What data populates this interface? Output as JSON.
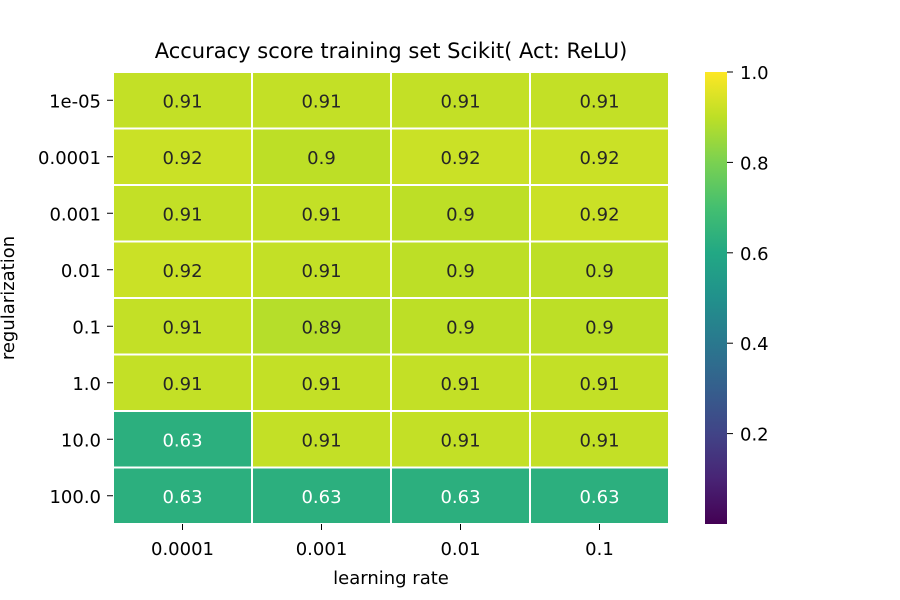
{
  "chart_data": {
    "type": "heatmap",
    "title": "Accuracy score training set Scikit( Act: ReLU)",
    "xlabel": "learning rate",
    "ylabel": "regularization",
    "x_categories": [
      "0.0001",
      "0.001",
      "0.01",
      "0.1"
    ],
    "y_categories": [
      "1e-05",
      "0.0001",
      "0.001",
      "0.01",
      "0.1",
      "1.0",
      "10.0",
      "100.0"
    ],
    "values": [
      [
        0.91,
        0.91,
        0.91,
        0.91
      ],
      [
        0.92,
        0.9,
        0.92,
        0.92
      ],
      [
        0.91,
        0.91,
        0.9,
        0.92
      ],
      [
        0.92,
        0.91,
        0.9,
        0.9
      ],
      [
        0.91,
        0.89,
        0.9,
        0.9
      ],
      [
        0.91,
        0.91,
        0.91,
        0.91
      ],
      [
        0.63,
        0.91,
        0.91,
        0.91
      ],
      [
        0.63,
        0.63,
        0.63,
        0.63
      ]
    ],
    "cell_labels": [
      [
        "0.91",
        "0.91",
        "0.91",
        "0.91"
      ],
      [
        "0.92",
        "0.9",
        "0.92",
        "0.92"
      ],
      [
        "0.91",
        "0.91",
        "0.9",
        "0.92"
      ],
      [
        "0.92",
        "0.91",
        "0.9",
        "0.9"
      ],
      [
        "0.91",
        "0.89",
        "0.9",
        "0.9"
      ],
      [
        "0.91",
        "0.91",
        "0.91",
        "0.91"
      ],
      [
        "0.63",
        "0.91",
        "0.91",
        "0.91"
      ],
      [
        "0.63",
        "0.63",
        "0.63",
        "0.63"
      ]
    ],
    "colormap": "viridis",
    "color_range": [
      0.0,
      1.0
    ],
    "colorbar_ticks": [
      "0.2",
      "0.4",
      "0.6",
      "0.8",
      "1.0"
    ],
    "colorbar_tick_values": [
      0.2,
      0.4,
      0.6,
      0.8,
      1.0
    ],
    "grid": false,
    "cell_border_color": "#ffffff"
  }
}
